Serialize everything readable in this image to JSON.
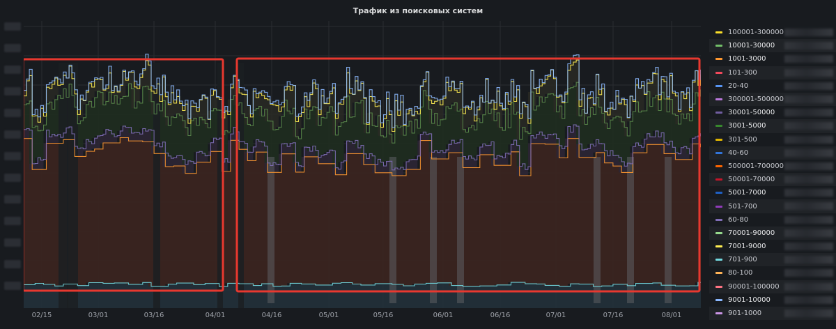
{
  "panel": {
    "title": "Трафик из поисковых систем"
  },
  "chart_data": {
    "type": "area",
    "title": "Трафик из поисковых систем",
    "stacked": true,
    "x_ticks": [
      "02/15",
      "03/01",
      "03/16",
      "04/01",
      "04/16",
      "05/01",
      "05/16",
      "06/01",
      "06/16",
      "07/01",
      "07/16",
      "08/01"
    ],
    "grid": true,
    "legend_placement": "right",
    "y_tick_labels_visible": false,
    "series": [
      {
        "name": "100001-300000",
        "color": "#fade2a"
      },
      {
        "name": "10001-30000",
        "color": "#73bf69"
      },
      {
        "name": "1001-3000",
        "color": "#ff9830"
      },
      {
        "name": "101-300",
        "color": "#f2495c"
      },
      {
        "name": "20-40",
        "color": "#5794f2"
      },
      {
        "name": "300001-500000",
        "color": "#b877d9"
      },
      {
        "name": "30001-50000",
        "color": "#705da0"
      },
      {
        "name": "3001-5000",
        "color": "#37872d"
      },
      {
        "name": "301-500",
        "color": "#e0b400"
      },
      {
        "name": "40-60",
        "color": "#3274d9"
      },
      {
        "name": "500001-700000",
        "color": "#fa6400"
      },
      {
        "name": "50001-70000",
        "color": "#c4162a"
      },
      {
        "name": "5001-7000",
        "color": "#1f60c4"
      },
      {
        "name": "501-700",
        "color": "#8f3bb8"
      },
      {
        "name": "60-80",
        "color": "#806eb7"
      },
      {
        "name": "70001-90000",
        "color": "#96d98d"
      },
      {
        "name": "7001-9000",
        "color": "#ffee52"
      },
      {
        "name": "701-900",
        "color": "#73d9e0"
      },
      {
        "name": "80-100",
        "color": "#ffb357"
      },
      {
        "name": "90001-100000",
        "color": "#ff7383"
      },
      {
        "name": "9001-10000",
        "color": "#8ab8ff"
      },
      {
        "name": "901-1000",
        "color": "#ca95e5"
      }
    ]
  },
  "highlight_color": "#e8382f"
}
